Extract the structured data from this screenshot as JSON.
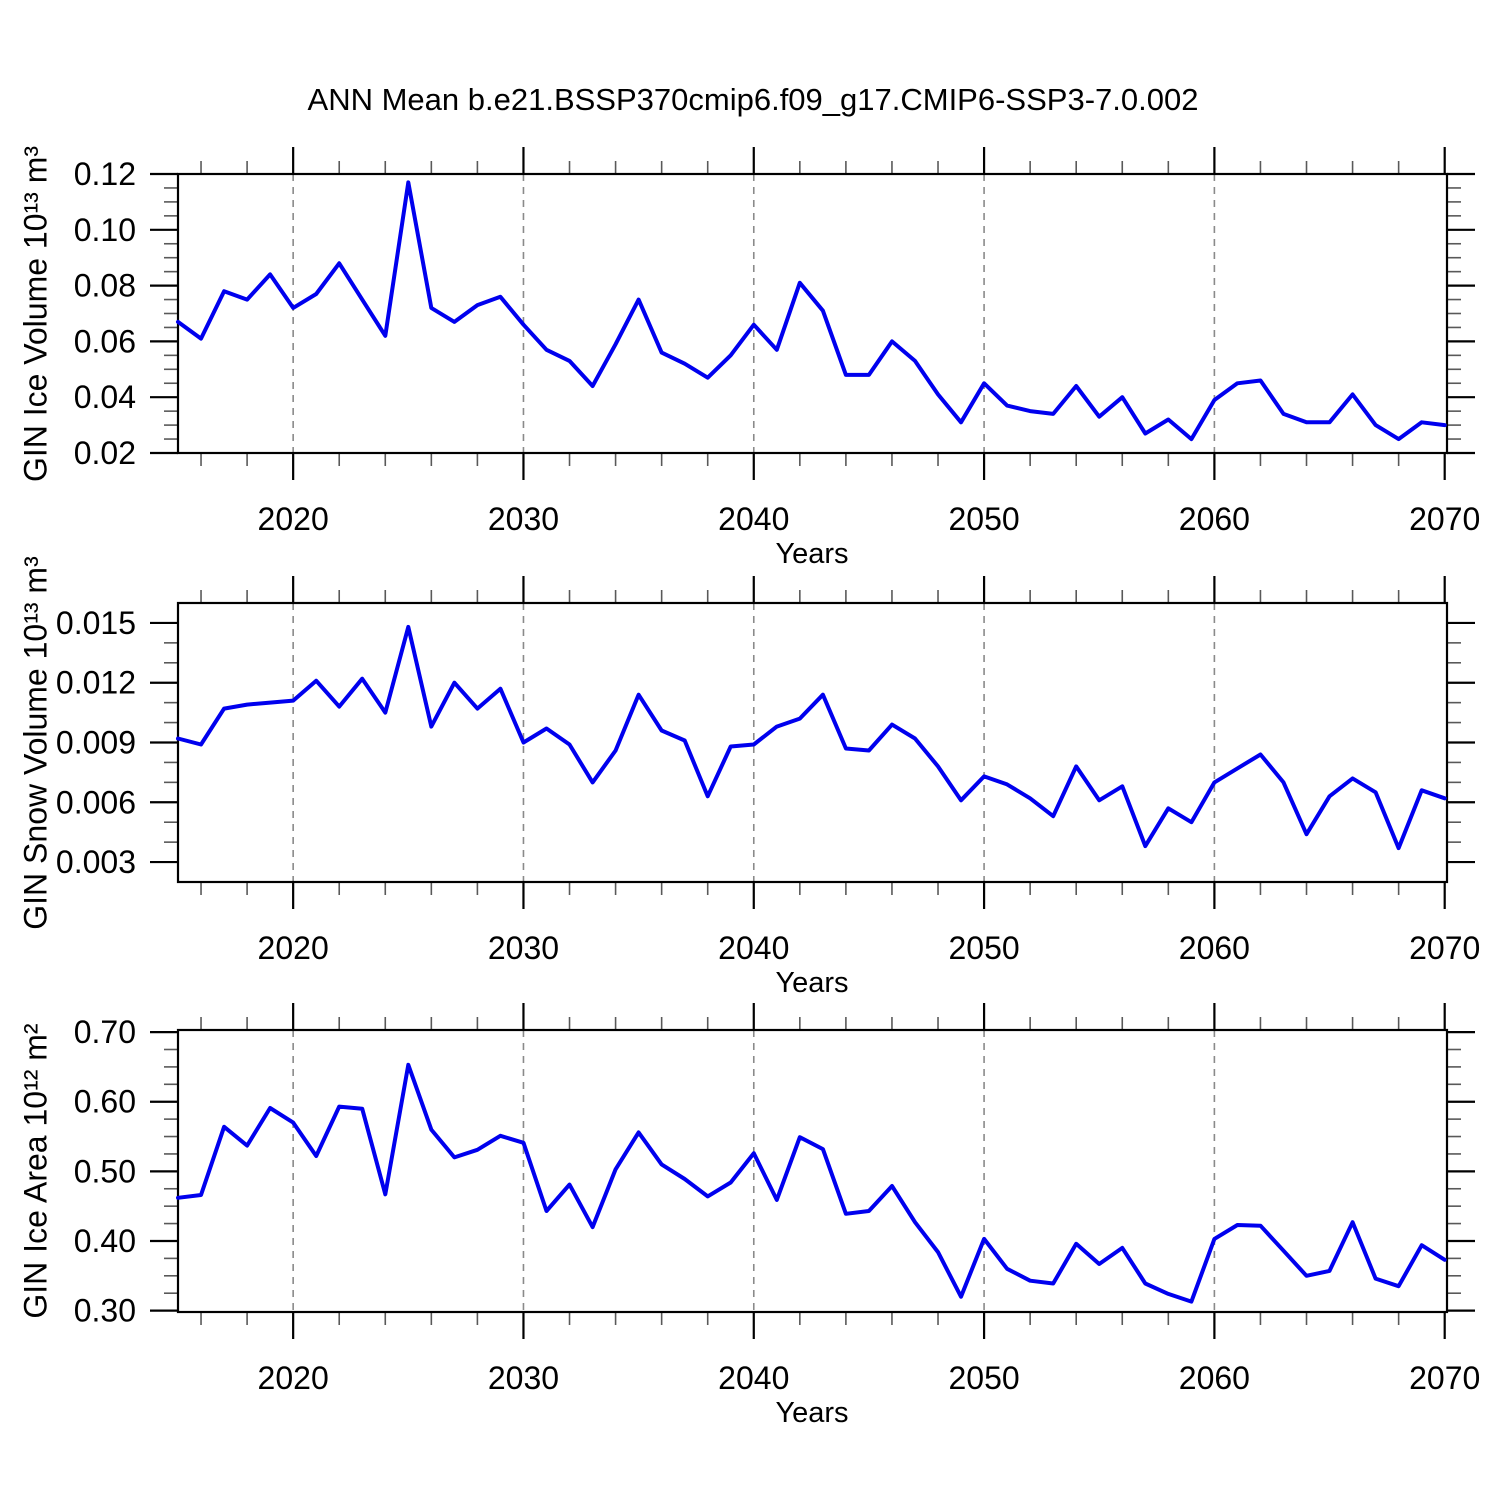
{
  "title": "ANN Mean b.e21.BSSP370cmip6.f09_g17.CMIP6-SSP3-7.0.002",
  "line_color": "#0000ee",
  "grid_color": "#8a8a8a",
  "frame_color": "#000000",
  "years": [
    2015,
    2016,
    2017,
    2018,
    2019,
    2020,
    2021,
    2022,
    2023,
    2024,
    2025,
    2026,
    2027,
    2028,
    2029,
    2030,
    2031,
    2032,
    2033,
    2034,
    2035,
    2036,
    2037,
    2038,
    2039,
    2040,
    2041,
    2042,
    2043,
    2044,
    2045,
    2046,
    2047,
    2048,
    2049,
    2050,
    2051,
    2052,
    2053,
    2054,
    2055,
    2056,
    2057,
    2058,
    2059,
    2060,
    2061,
    2062,
    2063,
    2064,
    2065,
    2066,
    2067,
    2068,
    2069,
    2070
  ],
  "xticks": [
    2020,
    2030,
    2040,
    2050,
    2060,
    2070
  ],
  "xtick_labels": [
    "2020",
    "2030",
    "2040",
    "2050",
    "2060",
    "2070"
  ],
  "xtick_minor_step": 2,
  "grid_at": [
    2020,
    2030,
    2040,
    2050,
    2060
  ],
  "xlim": [
    2015,
    2070.1
  ],
  "chart_data": [
    {
      "type": "line",
      "name": "gin-ice-volume",
      "title": "",
      "ylabel": "GIN Ice Volume 10¹³ m³",
      "xlabel": "Years",
      "legend": "none",
      "grid": "vertical-dashed-decades",
      "ylim": [
        0.02,
        0.12
      ],
      "yticks": [
        0.02,
        0.04,
        0.06,
        0.08,
        0.1,
        0.12
      ],
      "ytick_labels": [
        "0.02",
        "0.04",
        "0.06",
        "0.08",
        "0.10",
        "0.12"
      ],
      "ytick_minor_step": 0.005,
      "x": [
        2015,
        2016,
        2017,
        2018,
        2019,
        2020,
        2021,
        2022,
        2023,
        2024,
        2025,
        2026,
        2027,
        2028,
        2029,
        2030,
        2031,
        2032,
        2033,
        2034,
        2035,
        2036,
        2037,
        2038,
        2039,
        2040,
        2041,
        2042,
        2043,
        2044,
        2045,
        2046,
        2047,
        2048,
        2049,
        2050,
        2051,
        2052,
        2053,
        2054,
        2055,
        2056,
        2057,
        2058,
        2059,
        2060,
        2061,
        2062,
        2063,
        2064,
        2065,
        2066,
        2067,
        2068,
        2069,
        2070
      ],
      "values": [
        0.067,
        0.061,
        0.078,
        0.075,
        0.084,
        0.072,
        0.077,
        0.088,
        0.075,
        0.062,
        0.117,
        0.072,
        0.067,
        0.073,
        0.076,
        0.066,
        0.057,
        0.053,
        0.044,
        0.059,
        0.075,
        0.056,
        0.052,
        0.047,
        0.055,
        0.066,
        0.057,
        0.081,
        0.071,
        0.048,
        0.048,
        0.06,
        0.053,
        0.041,
        0.031,
        0.045,
        0.037,
        0.035,
        0.034,
        0.044,
        0.033,
        0.04,
        0.027,
        0.032,
        0.025,
        0.039,
        0.045,
        0.046,
        0.034,
        0.031,
        0.031,
        0.041,
        0.03,
        0.025,
        0.031,
        0.03
      ]
    },
    {
      "type": "line",
      "name": "gin-snow-volume",
      "title": "",
      "ylabel": "GIN Snow Volume 10¹³ m³",
      "xlabel": "Years",
      "legend": "none",
      "grid": "vertical-dashed-decades",
      "ylim": [
        0.002,
        0.016
      ],
      "yticks": [
        0.003,
        0.006,
        0.009,
        0.012,
        0.015
      ],
      "ytick_labels": [
        "0.003",
        "0.006",
        "0.009",
        "0.012",
        "0.015"
      ],
      "ytick_minor_step": 0.001,
      "x": [
        2015,
        2016,
        2017,
        2018,
        2019,
        2020,
        2021,
        2022,
        2023,
        2024,
        2025,
        2026,
        2027,
        2028,
        2029,
        2030,
        2031,
        2032,
        2033,
        2034,
        2035,
        2036,
        2037,
        2038,
        2039,
        2040,
        2041,
        2042,
        2043,
        2044,
        2045,
        2046,
        2047,
        2048,
        2049,
        2050,
        2051,
        2052,
        2053,
        2054,
        2055,
        2056,
        2057,
        2058,
        2059,
        2060,
        2061,
        2062,
        2063,
        2064,
        2065,
        2066,
        2067,
        2068,
        2069,
        2070
      ],
      "values": [
        0.0092,
        0.0089,
        0.0107,
        0.0109,
        0.011,
        0.0111,
        0.0121,
        0.0108,
        0.0122,
        0.0105,
        0.0148,
        0.0098,
        0.012,
        0.0107,
        0.0117,
        0.009,
        0.0097,
        0.0089,
        0.007,
        0.0086,
        0.0114,
        0.0096,
        0.0091,
        0.0063,
        0.0088,
        0.0089,
        0.0098,
        0.0102,
        0.0114,
        0.0087,
        0.0086,
        0.0099,
        0.0092,
        0.0078,
        0.0061,
        0.0073,
        0.0069,
        0.0062,
        0.0053,
        0.0078,
        0.0061,
        0.0068,
        0.0038,
        0.0057,
        0.005,
        0.007,
        0.0077,
        0.0084,
        0.007,
        0.0044,
        0.0063,
        0.0072,
        0.0065,
        0.0037,
        0.0066,
        0.0062
      ]
    },
    {
      "type": "line",
      "name": "gin-ice-area",
      "title": "",
      "ylabel": "GIN Ice Area 10¹² m²",
      "xlabel": "Years",
      "legend": "none",
      "grid": "vertical-dashed-decades",
      "ylim": [
        0.298,
        0.703
      ],
      "yticks": [
        0.3,
        0.4,
        0.5,
        0.6,
        0.7
      ],
      "ytick_labels": [
        "0.30",
        "0.40",
        "0.50",
        "0.60",
        "0.70"
      ],
      "ytick_minor_step": 0.025,
      "x": [
        2015,
        2016,
        2017,
        2018,
        2019,
        2020,
        2021,
        2022,
        2023,
        2024,
        2025,
        2026,
        2027,
        2028,
        2029,
        2030,
        2031,
        2032,
        2033,
        2034,
        2035,
        2036,
        2037,
        2038,
        2039,
        2040,
        2041,
        2042,
        2043,
        2044,
        2045,
        2046,
        2047,
        2048,
        2049,
        2050,
        2051,
        2052,
        2053,
        2054,
        2055,
        2056,
        2057,
        2058,
        2059,
        2060,
        2061,
        2062,
        2063,
        2064,
        2065,
        2066,
        2067,
        2068,
        2069,
        2070
      ],
      "values": [
        0.462,
        0.466,
        0.564,
        0.537,
        0.591,
        0.57,
        0.522,
        0.593,
        0.59,
        0.467,
        0.653,
        0.56,
        0.52,
        0.531,
        0.551,
        0.541,
        0.443,
        0.481,
        0.42,
        0.503,
        0.556,
        0.51,
        0.489,
        0.464,
        0.484,
        0.526,
        0.459,
        0.549,
        0.532,
        0.439,
        0.443,
        0.479,
        0.427,
        0.384,
        0.32,
        0.403,
        0.36,
        0.343,
        0.339,
        0.396,
        0.367,
        0.39,
        0.339,
        0.324,
        0.313,
        0.403,
        0.423,
        0.422,
        0.386,
        0.35,
        0.357,
        0.427,
        0.346,
        0.335,
        0.394,
        0.373
      ]
    }
  ]
}
